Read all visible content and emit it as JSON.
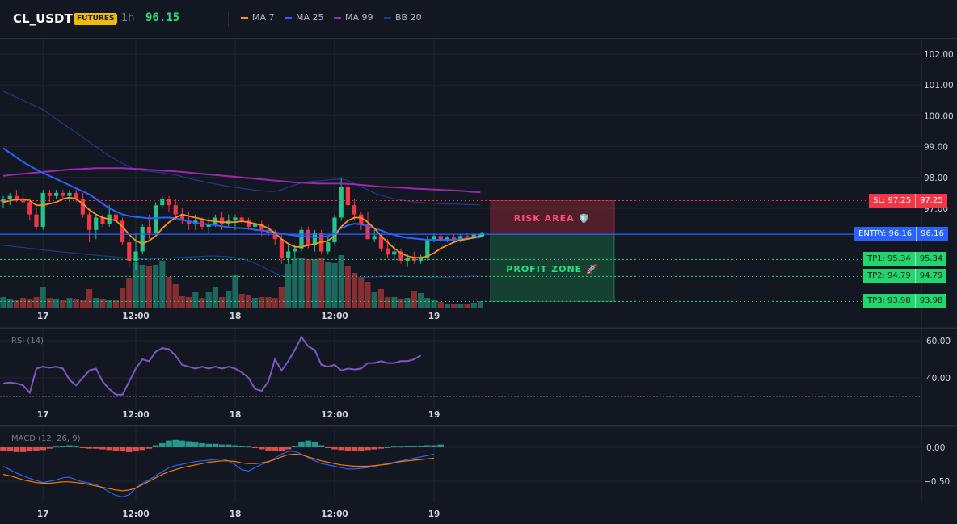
{
  "header": {
    "symbol": "CL_USDT",
    "badge": "FUTURES",
    "timeframe": "1h",
    "last_price": "96.15",
    "indicators": [
      {
        "label": "MA 7",
        "color": "#f7931a"
      },
      {
        "label": "MA 25",
        "color": "#2962ff"
      },
      {
        "label": "MA 99",
        "color": "#9c27b0"
      },
      {
        "label": "BB 20",
        "color": "#1e3a8a"
      }
    ]
  },
  "panes": {
    "rsi_label": "RSI (14)",
    "macd_label": "MACD (12, 26, 9)"
  },
  "zones": {
    "risk_label": "RISK AREA 🛡️",
    "profit_label": "PROFIT ZONE 🚀"
  },
  "levels": {
    "sl": {
      "label": "SL: 97.25",
      "value": "97.25",
      "price": 97.25
    },
    "entry": {
      "label": "ENTRY: 96.16",
      "value": "96.16",
      "price": 96.16
    },
    "tp1": {
      "label": "TP1: 95.34",
      "value": "95.34",
      "price": 95.34
    },
    "tp2": {
      "label": "TP2: 94.79",
      "value": "94.79",
      "price": 94.79
    },
    "tp3": {
      "label": "TP3: 93.98",
      "value": "93.98",
      "price": 93.98
    }
  },
  "colors": {
    "up": "#26a69a",
    "down": "#ef5350",
    "sl": "#f23645",
    "entry": "#2962ff",
    "tp": "#22d66f",
    "rsi": "#7e57c2",
    "macd": "#2962ff",
    "signal": "#f57c00"
  },
  "chart_data": [
    {
      "type": "candlestick",
      "name": "price",
      "x_ticks": [
        "17",
        "12:00",
        "18",
        "12:00",
        "19"
      ],
      "x_tick_index": [
        6,
        20,
        35,
        50,
        65
      ],
      "y_ticks": [
        102.0,
        101.0,
        100.0,
        99.0,
        98.0,
        97.0
      ],
      "ylim": [
        93.75,
        102.35
      ],
      "candles": [
        [
          97.2,
          97.4,
          97.0,
          97.3
        ],
        [
          97.3,
          97.5,
          97.1,
          97.4
        ],
        [
          97.4,
          97.6,
          97.2,
          97.3
        ],
        [
          97.3,
          97.6,
          97.0,
          97.2
        ],
        [
          97.2,
          97.3,
          96.6,
          96.8
        ],
        [
          96.8,
          97.0,
          96.3,
          96.4
        ],
        [
          96.4,
          97.6,
          96.3,
          97.5
        ],
        [
          97.5,
          97.6,
          97.2,
          97.4
        ],
        [
          97.4,
          97.6,
          97.3,
          97.5
        ],
        [
          97.5,
          97.6,
          97.3,
          97.4
        ],
        [
          97.4,
          97.6,
          97.2,
          97.5
        ],
        [
          97.5,
          97.6,
          97.2,
          97.3
        ],
        [
          97.3,
          97.5,
          96.7,
          96.8
        ],
        [
          96.8,
          96.9,
          95.9,
          96.3
        ],
        [
          96.3,
          96.8,
          96.0,
          96.7
        ],
        [
          96.7,
          96.8,
          96.4,
          96.5
        ],
        [
          96.5,
          97.1,
          96.4,
          96.8
        ],
        [
          96.8,
          96.9,
          96.5,
          96.6
        ],
        [
          96.6,
          96.7,
          95.8,
          95.9
        ],
        [
          95.9,
          96.0,
          95.1,
          95.3
        ],
        [
          95.3,
          96.2,
          95.0,
          95.6
        ],
        [
          95.6,
          96.5,
          95.5,
          96.4
        ],
        [
          96.4,
          96.8,
          96.0,
          96.2
        ],
        [
          96.2,
          97.2,
          96.1,
          97.1
        ],
        [
          97.1,
          97.4,
          97.0,
          97.3
        ],
        [
          97.3,
          97.4,
          96.9,
          97.1
        ],
        [
          97.1,
          97.3,
          96.6,
          96.8
        ],
        [
          96.8,
          97.0,
          96.5,
          96.6
        ],
        [
          96.6,
          96.9,
          96.3,
          96.5
        ],
        [
          96.5,
          96.8,
          96.3,
          96.6
        ],
        [
          96.6,
          96.7,
          96.3,
          96.4
        ],
        [
          96.4,
          96.7,
          96.2,
          96.5
        ],
        [
          96.5,
          96.8,
          96.4,
          96.7
        ],
        [
          96.7,
          96.9,
          96.3,
          96.5
        ],
        [
          96.5,
          96.8,
          96.4,
          96.6
        ],
        [
          96.6,
          96.8,
          96.3,
          96.7
        ],
        [
          96.7,
          96.8,
          96.5,
          96.6
        ],
        [
          96.6,
          96.7,
          96.3,
          96.4
        ],
        [
          96.4,
          96.6,
          96.2,
          96.5
        ],
        [
          96.5,
          96.6,
          96.1,
          96.3
        ],
        [
          96.3,
          96.5,
          96.1,
          96.2
        ],
        [
          96.2,
          96.3,
          95.8,
          96.0
        ],
        [
          96.0,
          96.2,
          95.2,
          95.4
        ],
        [
          95.4,
          95.8,
          95.2,
          95.6
        ],
        [
          95.6,
          95.8,
          95.4,
          95.7
        ],
        [
          95.7,
          96.4,
          95.6,
          96.3
        ],
        [
          96.3,
          96.4,
          95.7,
          95.8
        ],
        [
          95.8,
          96.3,
          95.6,
          96.2
        ],
        [
          96.2,
          96.3,
          95.5,
          95.6
        ],
        [
          95.6,
          96.1,
          95.5,
          95.9
        ],
        [
          95.9,
          96.8,
          95.8,
          96.7
        ],
        [
          96.7,
          98.0,
          96.6,
          97.7
        ],
        [
          97.7,
          97.9,
          97.0,
          97.1
        ],
        [
          97.1,
          97.3,
          96.6,
          96.8
        ],
        [
          96.8,
          96.9,
          96.3,
          96.5
        ],
        [
          96.5,
          96.9,
          96.0,
          96.0
        ],
        [
          96.0,
          96.3,
          95.9,
          96.1
        ],
        [
          96.1,
          96.2,
          95.6,
          95.7
        ],
        [
          95.7,
          96.0,
          95.4,
          95.5
        ],
        [
          95.5,
          95.8,
          95.3,
          95.6
        ],
        [
          95.6,
          95.7,
          95.2,
          95.3
        ],
        [
          95.3,
          95.5,
          95.1,
          95.4
        ],
        [
          95.4,
          95.6,
          95.2,
          95.3
        ],
        [
          95.3,
          95.5,
          95.2,
          95.4
        ],
        [
          95.4,
          96.1,
          95.3,
          96.0
        ],
        [
          96.0,
          96.2,
          95.9,
          96.1
        ],
        [
          96.1,
          96.2,
          95.9,
          96.0
        ],
        [
          96.0,
          96.1,
          95.9,
          96.05
        ],
        [
          96.05,
          96.15,
          95.95,
          96.0
        ],
        [
          96.0,
          96.15,
          95.9,
          96.1
        ],
        [
          96.1,
          96.2,
          96.0,
          96.05
        ],
        [
          96.05,
          96.2,
          96.0,
          96.15
        ],
        [
          96.15,
          96.2,
          96.05,
          96.15
        ]
      ],
      "volumes": [
        14,
        12,
        11,
        13,
        12,
        14,
        26,
        13,
        12,
        11,
        13,
        12,
        11,
        24,
        13,
        12,
        11,
        10,
        25,
        38,
        58,
        54,
        52,
        54,
        59,
        39,
        30,
        16,
        14,
        20,
        13,
        20,
        26,
        14,
        22,
        41,
        18,
        17,
        13,
        14,
        14,
        13,
        26,
        55,
        62,
        62,
        61,
        61,
        62,
        58,
        56,
        66,
        52,
        44,
        38,
        33,
        20,
        24,
        14,
        14,
        12,
        13,
        22,
        19,
        13,
        11,
        8,
        6,
        5,
        6,
        5,
        7,
        9
      ],
      "ma7": [
        97.2,
        97.25,
        97.28,
        97.3,
        97.25,
        97.1,
        97.1,
        97.15,
        97.2,
        97.3,
        97.35,
        97.3,
        97.15,
        96.95,
        96.8,
        96.7,
        96.65,
        96.6,
        96.4,
        96.15,
        95.95,
        95.85,
        95.95,
        96.1,
        96.35,
        96.55,
        96.7,
        96.8,
        96.75,
        96.7,
        96.65,
        96.6,
        96.58,
        96.55,
        96.55,
        96.55,
        96.58,
        96.55,
        96.5,
        96.45,
        96.35,
        96.2,
        96.0,
        95.85,
        95.75,
        95.75,
        95.8,
        95.85,
        95.9,
        95.95,
        96.1,
        96.4,
        96.6,
        96.7,
        96.7,
        96.55,
        96.35,
        96.1,
        95.9,
        95.7,
        95.55,
        95.45,
        95.4,
        95.4,
        95.45,
        95.55,
        95.7,
        95.8,
        95.9,
        95.97,
        96.0,
        96.05,
        96.1
      ],
      "ma25": [
        98.95,
        98.8,
        98.65,
        98.5,
        98.38,
        98.26,
        98.15,
        98.05,
        97.95,
        97.85,
        97.75,
        97.65,
        97.55,
        97.45,
        97.3,
        97.15,
        97.0,
        96.9,
        96.8,
        96.75,
        96.72,
        96.7,
        96.68,
        96.68,
        96.7,
        96.7,
        96.68,
        96.62,
        96.58,
        96.52,
        96.5,
        96.48,
        96.45,
        96.42,
        96.38,
        96.36,
        96.35,
        96.34,
        96.3,
        96.28,
        96.25,
        96.22,
        96.18,
        96.15,
        96.12,
        96.1,
        96.08,
        96.06,
        96.06,
        96.1,
        96.2,
        96.35,
        96.45,
        96.5,
        96.48,
        96.42,
        96.35,
        96.28,
        96.2,
        96.14,
        96.08,
        96.04,
        96.02,
        96.0,
        95.98,
        95.98,
        95.98,
        95.98,
        95.98,
        96.0,
        96.02,
        96.04,
        96.06
      ],
      "ma99": [
        98.05,
        98.08,
        98.1,
        98.12,
        98.14,
        98.16,
        98.18,
        98.2,
        98.22,
        98.24,
        98.26,
        98.27,
        98.28,
        98.29,
        98.3,
        98.3,
        98.3,
        98.3,
        98.3,
        98.29,
        98.28,
        98.27,
        98.25,
        98.24,
        98.22,
        98.21,
        98.2,
        98.18,
        98.16,
        98.14,
        98.12,
        98.1,
        98.08,
        98.06,
        98.04,
        98.02,
        98.0,
        97.98,
        97.96,
        97.94,
        97.92,
        97.9,
        97.88,
        97.86,
        97.84,
        97.83,
        97.82,
        97.81,
        97.8,
        97.8,
        97.8,
        97.8,
        97.79,
        97.78,
        97.76,
        97.74,
        97.72,
        97.7,
        97.69,
        97.68,
        97.67,
        97.66,
        97.64,
        97.63,
        97.62,
        97.61,
        97.6,
        97.59,
        97.58,
        97.57,
        97.55,
        97.53,
        97.52
      ],
      "bb_upper": [
        100.8,
        100.7,
        100.6,
        100.5,
        100.4,
        100.3,
        100.2,
        100.05,
        99.9,
        99.75,
        99.6,
        99.45,
        99.3,
        99.15,
        99.0,
        98.85,
        98.7,
        98.58,
        98.46,
        98.35,
        98.27,
        98.22,
        98.2,
        98.18,
        98.15,
        98.12,
        98.08,
        98.03,
        97.97,
        97.92,
        97.88,
        97.83,
        97.79,
        97.75,
        97.71,
        97.68,
        97.65,
        97.62,
        97.59,
        97.57,
        97.55,
        97.55,
        97.6,
        97.68,
        97.76,
        97.82,
        97.86,
        97.88,
        97.9,
        97.92,
        97.94,
        97.95,
        97.9,
        97.8,
        97.7,
        97.6,
        97.5,
        97.42,
        97.36,
        97.31,
        97.27,
        97.24,
        97.21,
        97.19,
        97.17,
        97.16,
        97.15,
        97.14,
        97.14,
        97.13,
        97.12,
        97.12,
        97.11
      ],
      "bb_lower": [
        95.8,
        95.78,
        95.75,
        95.73,
        95.7,
        95.68,
        95.65,
        95.63,
        95.6,
        95.58,
        95.56,
        95.54,
        95.52,
        95.5,
        95.48,
        95.46,
        95.44,
        95.42,
        95.4,
        95.38,
        95.37,
        95.36,
        95.36,
        95.36,
        95.37,
        95.38,
        95.4,
        95.41,
        95.42,
        95.43,
        95.44,
        95.45,
        95.45,
        95.44,
        95.43,
        95.4,
        95.36,
        95.3,
        95.22,
        95.12,
        95.0,
        94.9,
        94.82,
        94.76,
        94.72,
        94.7,
        94.69,
        94.69,
        94.7,
        94.71,
        94.72,
        94.73,
        94.74,
        94.75,
        94.76,
        94.77,
        94.78,
        94.79,
        94.8,
        94.8,
        94.8,
        94.79,
        94.78,
        94.78,
        94.77,
        94.77,
        94.77,
        94.77,
        94.78,
        94.78,
        94.79,
        94.8,
        94.8
      ]
    },
    {
      "type": "line",
      "name": "RSI (14)",
      "y_ticks": [
        60.0,
        40.0
      ],
      "ylim": [
        23,
        67
      ],
      "reference_line": 30,
      "values": [
        37,
        37.5,
        37,
        36,
        32,
        45,
        46,
        45.5,
        46,
        45,
        39,
        36,
        40,
        44,
        45,
        38,
        34,
        31,
        31,
        38,
        45,
        50,
        49,
        54,
        56,
        55.5,
        52,
        47,
        46,
        45,
        46,
        45,
        46,
        45,
        46,
        45,
        43,
        40,
        34,
        33,
        38,
        50,
        44,
        49,
        55,
        62,
        57,
        55,
        47,
        46,
        47,
        44,
        45,
        44.5,
        45,
        48,
        48,
        49,
        48,
        48,
        49,
        49,
        50,
        52
      ]
    },
    {
      "type": "bar",
      "name": "MACD (12, 26, 9)",
      "y_ticks": [
        0.0,
        -0.5
      ],
      "ylim": [
        -0.79,
        0.18
      ],
      "histogram": [
        -0.05,
        -0.06,
        -0.07,
        -0.07,
        -0.06,
        -0.05,
        -0.04,
        -0.02,
        0.01,
        0.02,
        0.03,
        0.01,
        -0.01,
        -0.02,
        -0.02,
        -0.03,
        -0.04,
        -0.05,
        -0.06,
        -0.07,
        -0.06,
        -0.04,
        -0.02,
        0.03,
        0.06,
        0.1,
        0.11,
        0.1,
        0.09,
        0.07,
        0.06,
        0.05,
        0.05,
        0.04,
        0.04,
        0.03,
        0.02,
        0.01,
        -0.01,
        -0.03,
        -0.05,
        -0.06,
        -0.05,
        -0.03,
        0.02,
        0.08,
        0.1,
        0.08,
        0.03,
        -0.01,
        -0.03,
        -0.04,
        -0.05,
        -0.05,
        -0.05,
        -0.04,
        -0.03,
        -0.02,
        0.0,
        0.01,
        0.01,
        0.02,
        0.02,
        0.02,
        0.03,
        0.03,
        0.04
      ],
      "macd": [
        -0.28,
        -0.33,
        -0.38,
        -0.42,
        -0.46,
        -0.49,
        -0.52,
        -0.5,
        -0.48,
        -0.45,
        -0.44,
        -0.48,
        -0.51,
        -0.53,
        -0.55,
        -0.6,
        -0.66,
        -0.71,
        -0.73,
        -0.7,
        -0.6,
        -0.53,
        -0.48,
        -0.42,
        -0.36,
        -0.3,
        -0.27,
        -0.25,
        -0.23,
        -0.21,
        -0.2,
        -0.19,
        -0.18,
        -0.17,
        -0.2,
        -0.26,
        -0.33,
        -0.35,
        -0.3,
        -0.25,
        -0.22,
        -0.16,
        -0.1,
        -0.06,
        -0.06,
        -0.1,
        -0.15,
        -0.2,
        -0.24,
        -0.26,
        -0.28,
        -0.3,
        -0.32,
        -0.32,
        -0.31,
        -0.3,
        -0.28,
        -0.26,
        -0.24,
        -0.22,
        -0.2,
        -0.18,
        -0.16,
        -0.14,
        -0.12,
        -0.1
      ],
      "signal": [
        -0.4,
        -0.42,
        -0.45,
        -0.48,
        -0.5,
        -0.52,
        -0.53,
        -0.53,
        -0.52,
        -0.51,
        -0.51,
        -0.52,
        -0.53,
        -0.55,
        -0.57,
        -0.59,
        -0.61,
        -0.63,
        -0.64,
        -0.63,
        -0.6,
        -0.55,
        -0.5,
        -0.45,
        -0.4,
        -0.36,
        -0.33,
        -0.3,
        -0.28,
        -0.26,
        -0.24,
        -0.22,
        -0.21,
        -0.2,
        -0.2,
        -0.21,
        -0.23,
        -0.24,
        -0.24,
        -0.23,
        -0.21,
        -0.18,
        -0.14,
        -0.11,
        -0.1,
        -0.11,
        -0.14,
        -0.17,
        -0.2,
        -0.22,
        -0.24,
        -0.26,
        -0.27,
        -0.28,
        -0.28,
        -0.28,
        -0.27,
        -0.26,
        -0.25,
        -0.23,
        -0.21,
        -0.2,
        -0.19,
        -0.18,
        -0.17,
        -0.16
      ]
    }
  ]
}
